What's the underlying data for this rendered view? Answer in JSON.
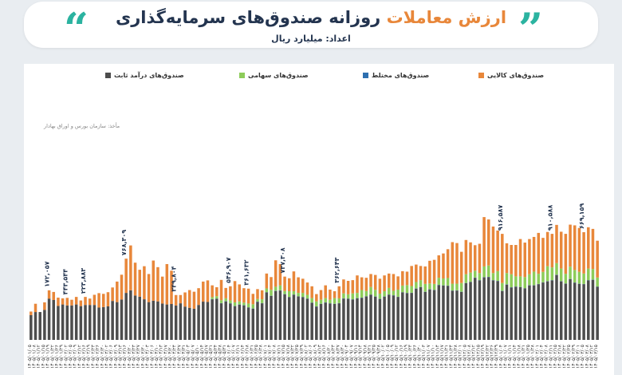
{
  "header": {
    "title_accent": "ارزش معاملات",
    "title_main": "روزانه صندوق‌های سرمایه‌گذاری",
    "unit_label": "اعداد: میلیارد ریال"
  },
  "source_note": "مأخذ: سازمان بورس و اوراق بهادار",
  "chart_data": {
    "type": "bar",
    "stacked": true,
    "series": [
      {
        "name": "صندوق‌های درآمد ثابت",
        "color": "#4d4d4d",
        "values": [
          105,
          118,
          118,
          127,
          175,
          169,
          144,
          150,
          146,
          146,
          150,
          143,
          148,
          148,
          148,
          137,
          139,
          142,
          165,
          160,
          171,
          199,
          210,
          188,
          183,
          172,
          160,
          166,
          163,
          154,
          150,
          152,
          146,
          155,
          141,
          136,
          132,
          148,
          162,
          161,
          172,
          174,
          155,
          163,
          154,
          143,
          149,
          146,
          137,
          132,
          161,
          155,
          201,
          186,
          207,
          209,
          193,
          181,
          191,
          184,
          181,
          174,
          157,
          141,
          152,
          158,
          154,
          152,
          155,
          175,
          174,
          171,
          176,
          178,
          184,
          191,
          183,
          173,
          183,
          191,
          188,
          182,
          201,
          198,
          199,
          217,
          223,
          203,
          214,
          211,
          232,
          230,
          229,
          208,
          209,
          203,
          240,
          245,
          263,
          252,
          265,
          266,
          252,
          249,
          207,
          234,
          222,
          225,
          223,
          218,
          231,
          231,
          236,
          243,
          248,
          252,
          275,
          248,
          238,
          257,
          242,
          237,
          236,
          252,
          254,
          225
        ]
      },
      {
        "name": "صندوق‌های مختلط",
        "color": "#2d6fb0",
        "values": [
          0,
          0,
          0,
          0,
          0,
          0,
          0,
          0,
          0,
          0,
          0,
          0,
          0,
          0,
          0,
          0,
          0,
          0,
          0,
          0,
          0,
          0,
          0,
          0,
          0,
          0,
          0,
          0,
          0,
          0,
          0,
          0,
          0,
          0,
          0,
          0,
          0,
          0,
          0,
          0,
          1,
          1,
          1,
          1,
          1,
          1,
          1,
          1,
          1,
          1,
          1,
          1,
          1,
          1,
          1,
          1,
          1,
          1,
          1,
          1,
          1,
          1,
          1,
          1,
          1,
          1,
          1,
          1,
          1,
          1,
          1,
          1,
          1,
          1,
          1,
          1,
          1,
          1,
          1,
          1,
          1,
          1,
          1,
          1,
          1,
          1,
          1,
          1,
          1,
          1,
          1,
          1,
          1,
          1,
          1,
          1,
          1,
          1,
          1,
          1,
          1,
          1,
          1,
          1,
          1,
          1,
          1,
          1,
          1,
          1,
          1,
          1,
          1,
          1,
          1,
          1,
          1,
          1,
          1,
          1,
          1,
          1,
          1,
          1,
          1,
          1
        ]
      },
      {
        "name": "صندوق‌های سهامی",
        "color": "#8dcc5a",
        "values": [
          0,
          0,
          0,
          0,
          0,
          0,
          0,
          0,
          0,
          0,
          0,
          0,
          0,
          0,
          0,
          0,
          0,
          0,
          0,
          0,
          0,
          0,
          0,
          0,
          0,
          0,
          0,
          0,
          0,
          0,
          0,
          0,
          0,
          0,
          0,
          0,
          0,
          0,
          0,
          0,
          8,
          10,
          12,
          12,
          12,
          15,
          13,
          11,
          16,
          18,
          11,
          16,
          16,
          25,
          17,
          21,
          13,
          24,
          14,
          14,
          17,
          16,
          19,
          21,
          17,
          18,
          15,
          24,
          20,
          21,
          18,
          25,
          22,
          32,
          22,
          32,
          28,
          22,
          22,
          28,
          19,
          30,
          28,
          33,
          28,
          27,
          29,
          33,
          24,
          25,
          30,
          29,
          32,
          29,
          28,
          37,
          37,
          39,
          29,
          30,
          45,
          48,
          30,
          41,
          33,
          48,
          55,
          43,
          45,
          47,
          46,
          57,
          43,
          44,
          63,
          54,
          49,
          53,
          41,
          52,
          53,
          50,
          44,
          49,
          45,
          38
        ]
      },
      {
        "name": "صندوق‌های کالایی",
        "color": "#e8873a",
        "values": [
          15,
          35,
          0,
          32,
          35,
          34,
          35,
          26,
          32,
          24,
          32,
          24,
          34,
          27,
          43,
          61,
          56,
          60,
          57,
          87,
          105,
          145,
          190,
          139,
          114,
          140,
          119,
          170,
          145,
          114,
          171,
          141,
          44,
          35,
          60,
          75,
          72,
          71,
          85,
          91,
          50,
          38,
          86,
          44,
          60,
          90,
          72,
          61,
          63,
          44,
          42,
          38,
          63,
          54,
          112,
          90,
          61,
          55,
          84,
          66,
          60,
          52,
          50,
          31,
          41,
          54,
          43,
          29,
          51,
          59,
          57,
          56,
          74,
          54,
          56,
          55,
          63,
          63,
          67,
          61,
          71,
          56,
          61,
          57,
          85,
          74,
          60,
          74,
          96,
          102,
          95,
          106,
          122,
          176,
          172,
          132,
          145,
          128,
          108,
          124,
          209,
          195,
          197,
          172,
          208,
          126,
          124,
          133,
          158,
          146,
          149,
          147,
          173,
          144,
          145,
          142,
          162,
          156,
          169,
          178,
          189,
          186,
          175,
          175,
          170,
          156
        ]
      }
    ],
    "legend_order": [
      "صندوق‌های کالایی",
      "صندوق‌های مختلط",
      "صندوق‌های سهامی",
      "صندوق‌های درآمد ثابت"
    ],
    "annotations": [
      {
        "index": 4,
        "label": "۱۷۲,۰۵۷"
      },
      {
        "index": 8,
        "label": "۴۴۳,۵۴۴"
      },
      {
        "index": 12,
        "label": "۲۲۳,۸۸۳"
      },
      {
        "index": 21,
        "label": "۷۶۸,۳۰۹"
      },
      {
        "index": 32,
        "label": "۳۴۹,۸۰۴"
      },
      {
        "index": 44,
        "label": "۵۴۶,۹۰۷"
      },
      {
        "index": 48,
        "label": "۳۶۱,۶۳۲"
      },
      {
        "index": 56,
        "label": "۷۳۷,۳۰۸"
      },
      {
        "index": 68,
        "label": "۳۶۲,۶۴۳"
      },
      {
        "index": 104,
        "label": "۹۱۶,۵۸۷"
      },
      {
        "index": 115,
        "label": "۹۱۰,۵۸۸"
      },
      {
        "index": 122,
        "label": "۶۶۹,۱۵۹"
      }
    ],
    "x_labels": [
      "۱۴۰۵/۰۱/۰۵",
      "۱۴۰۵/۰۱/۰۸",
      "۱۴۰۵/۰۱/۱۲",
      "۱۴۰۵/۰۱/۱۵",
      "۱۴۰۵/۰۱/۱۹",
      "۱۴۰۵/۰۱/۲۲",
      "۱۴۰۵/۰۱/۲۶",
      "۱۴۰۵/۰۱/۲۹",
      "۱۴۰۵/۰۲/۰۲",
      "۱۴۰۵/۰۲/۰۵",
      "۱۴۰۵/۰۲/۰۹",
      "۱۴۰۵/۰۲/۱۲",
      "۱۴۰۵/۰۲/۱۶",
      "۱۴۰۵/۰۲/۱۹",
      "۱۴۰۵/۰۲/۲۳",
      "۱۴۰۵/۰۲/۲۶",
      "۱۴۰۵/۰۲/۳۰",
      "۱۴۰۵/۰۳/۰۲",
      "۱۴۰۵/۰۳/۰۶",
      "۱۴۰۵/۰۳/۰۹",
      "۱۴۰۵/۰۳/۱۳",
      "۱۴۰۵/۰۳/۱۶",
      "۱۴۰۵/۰۳/۲۰",
      "۱۴۰۵/۰۳/۲۳",
      "۱۴۰۵/۰۳/۲۷",
      "۱۴۰۵/۰۳/۳۰",
      "۱۴۰۵/۰۴/۰۳",
      "۱۴۰۵/۰۴/۰۶",
      "۱۴۰۵/۰۴/۱۰",
      "۱۴۰۵/۰۴/۱۳",
      "۱۴۰۵/۰۴/۱۷",
      "۱۴۰۵/۰۴/۲۰",
      "۱۴۰۵/۰۴/۲۴",
      "۱۴۰۵/۰۴/۲۷",
      "۱۴۰۵/۰۴/۳۱",
      "۱۴۰۵/۰۵/۰۳",
      "۱۴۰۵/۰۵/۰۷",
      "۱۴۰۵/۰۵/۱۰",
      "۱۴۰۵/۰۵/۱۴",
      "۱۴۰۵/۰۵/۱۷",
      "۱۴۰۵/۰۵/۲۱",
      "۱۴۰۵/۰۵/۲۴",
      "۱۴۰۵/۰۵/۲۸",
      "۱۴۰۵/۰۵/۳۱",
      "۱۴۰۵/۰۶/۰۴",
      "۱۴۰۵/۰۶/۰۷",
      "۱۴۰۵/۰۶/۱۱",
      "۱۴۰۵/۰۶/۱۴",
      "۱۴۰۵/۰۶/۱۸",
      "۱۴۰۵/۰۶/۲۱",
      "۱۴۰۵/۰۶/۲۵",
      "۱۴۰۵/۰۶/۲۸",
      "۱۴۰۵/۰۷/۰۱",
      "۱۴۰۵/۰۷/۰۴",
      "۱۴۰۵/۰۷/۰۸",
      "۱۴۰۵/۰۷/۱۱",
      "۱۴۰۵/۰۷/۱۵",
      "۱۴۰۵/۰۷/۱۸",
      "۱۴۰۵/۰۷/۲۲",
      "۱۴۰۵/۰۷/۲۵",
      "۱۴۰۵/۰۷/۲۹",
      "۱۴۰۵/۰۸/۰۲",
      "۱۴۰۵/۰۸/۰۶",
      "۱۴۰۵/۰۸/۰۹",
      "۱۴۰۵/۰۸/۱۳",
      "۱۴۰۵/۰۸/۱۶",
      "۱۴۰۵/۰۸/۲۰",
      "۱۴۰۵/۰۸/۲۳",
      "۱۴۰۵/۰۸/۲۷",
      "۱۴۰۵/۰۸/۳۰",
      "۱۴۰۵/۰۹/۰۴",
      "۱۴۰۵/۰۹/۰۷",
      "۱۴۰۵/۰۹/۱۱",
      "۱۴۰۵/۰۹/۱۴",
      "۱۴۰۵/۰۹/۱۸",
      "۱۴۰۵/۰۹/۲۱",
      "۱۴۰۵/۰۹/۲۵",
      "۱۴۰۵/۰۹/۲۸",
      "۱۴۰۵/۱۰/۰۲",
      "۱۴۰۵/۱۰/۰۵",
      "۱۴۰۵/۱۰/۰۹",
      "۱۴۰۵/۱۰/۱۲",
      "۱۴۰۵/۱۰/۱۶",
      "۱۴۰۵/۱۰/۱۹",
      "۱۴۰۵/۱۰/۲۳",
      "۱۴۰۵/۱۰/۲۶",
      "۱۴۰۵/۱۰/۳۰",
      "۱۴۰۵/۱۱/۰۳",
      "۱۴۰۵/۱۱/۰۷",
      "۱۴۰۵/۱۱/۱۰",
      "۱۴۰۵/۱۱/۱۴",
      "۱۴۰۵/۱۱/۱۷",
      "۱۴۰۵/۱۱/۲۱",
      "۱۴۰۵/۱۱/۲۴",
      "۱۴۰۵/۱۱/۲۸",
      "۱۴۰۵/۱۲/۰۱",
      "۱۴۰۵/۱۲/۰۵",
      "۱۴۰۵/۱۲/۰۸",
      "۱۴۰۵/۱۲/۱۲",
      "۱۴۰۵/۱۲/۱۵",
      "۱۴۰۵/۱۲/۱۹",
      "۱۴۰۵/۱۲/۲۲",
      "۱۴۰۵/۱۲/۲۶",
      "۱۴۰۵/۱۲/۲۹",
      "۱۴۰۵/۰۱/۰۴",
      "۱۴۰۵/۰۱/۰۷",
      "۱۴۰۵/۰۱/۱۱",
      "۱۴۰۵/۰۱/۱۴",
      "۱۴۰۵/۰۱/۱۸",
      "۱۴۰۵/۰۱/۲۱",
      "۱۴۰۵/۰۱/۲۵",
      "۱۴۰۵/۰۱/۲۸",
      "۱۴۰۵/۰۲/۰۱",
      "۱۴۰۵/۰۲/۰۴",
      "۱۴۰۵/۰۲/۰۸",
      "۱۴۰۵/۰۲/۱۱",
      "۱۴۰۵/۰۲/۱۵",
      "۱۴۰۵/۰۲/۱۸",
      "۱۴۰۵/۰۲/۲۲",
      "۱۴۰۵/۰۲/۲۵",
      "۱۴۰۵/۰۲/۲۹",
      "۱۴۰۵/۰۳/۰۱",
      "۱۴۰۵/۰۳/۰۵",
      "۱۴۰۵/۰۳/۰۸",
      "۱۴۰۵/۰۳/۱۲",
      "۱۴۰۵/۰۳/۱۵",
      "۱۴۰۵/۰۳/۱۹",
      "۱۴۰۵/۰۳/۲۲",
      "۱۴۰۵/۰۳/۲۶"
    ],
    "ylim": [
      0,
      1000
    ],
    "grid": false,
    "legend_position": "top"
  }
}
